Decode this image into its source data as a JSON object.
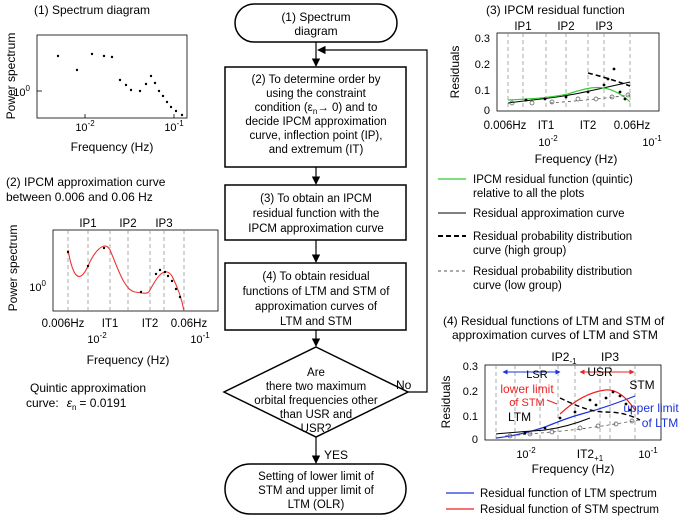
{
  "flowchart": {
    "step1": [
      "(1) Spectrum",
      "diagram"
    ],
    "step2": [
      "(2) To determine order by",
      "using the constraint",
      "condition (ε",
      "→ 0) and to",
      "decide IPCM approximation",
      "curve, inflection point (IP),",
      "and extremum (IT)"
    ],
    "step2_sub": "n",
    "step3": [
      "(3) To obtain an IPCM",
      "residual function with the",
      "IPCM approximation curve"
    ],
    "step4": [
      "(4) To obtain residual",
      "functions of LTM and STM of",
      "approximation curves of",
      "LTM and STM"
    ],
    "decision": [
      "Are",
      "there two maximum",
      "orbital frequencies other",
      "than USR and",
      "USR?"
    ],
    "yes": "YES",
    "no": "No",
    "final": [
      "Setting of lower limit of",
      "STM and upper limit of",
      "LTM (OLR)"
    ]
  },
  "panel1": {
    "title": "(1) Spectrum diagram",
    "ylabel": "Power spectrum",
    "xlabel": "Frequency (Hz)",
    "ytick": "10",
    "ytick_sup": "0",
    "xticks": [
      {
        "base": "10",
        "sup": "-2"
      },
      {
        "base": "10",
        "sup": "-1"
      }
    ]
  },
  "panel2": {
    "title": [
      "(2) IPCM approximation curve",
      "between 0.006 and 0.06 Hz"
    ],
    "ylabel": "Power spectrum",
    "xlabel": "Frequency (Hz)",
    "ytick": "10",
    "ytick_sup": "0",
    "top_labels": [
      "IP1",
      "IP2",
      "IP3"
    ],
    "bottom_labels": [
      "0.006Hz",
      "IT1",
      "IT2",
      "0.06Hz"
    ],
    "xticks": [
      {
        "base": "10",
        "sup": "-2"
      },
      {
        "base": "10",
        "sup": "-1"
      }
    ],
    "note_line1": "Quintic approximation",
    "note_line2_prefix": "curve:",
    "note_eps": "ε",
    "note_sub": "n",
    "note_value": "= 0.0191"
  },
  "panel3": {
    "title": "(3) IPCM  residual function",
    "ylabel": "Residuals",
    "xlabel": "Frequency (Hz)",
    "yticks": [
      "0.3",
      "0.2",
      "0.1",
      "0"
    ],
    "top_labels": [
      "IP1",
      "IP2",
      "IP3"
    ],
    "bottom_labels": [
      "0.006Hz",
      "IT1",
      "IT2",
      "0.06Hz"
    ],
    "xticks": [
      {
        "base": "10",
        "sup": "-2"
      },
      {
        "base": "10",
        "sup": "-1"
      }
    ]
  },
  "legend3": [
    {
      "lines": [
        "IPCM residual function (quintic)",
        "relative to all the plots"
      ],
      "color": "#33cc33",
      "style": "solid"
    },
    {
      "lines": [
        "Residual approximation curve"
      ],
      "color": "#000000",
      "style": "solid"
    },
    {
      "lines": [
        "Residual probability distribution",
        "curve (high group)"
      ],
      "color": "#000000",
      "style": "bold-dash"
    },
    {
      "lines": [
        "Residual probability distribution",
        "curve (low group)"
      ],
      "color": "#555555",
      "style": "thin-dash"
    }
  ],
  "panel4": {
    "title": [
      "(4) Residual functions of LTM and STM of",
      "approximation curves of LTM and STM"
    ],
    "ylabel": "Residuals",
    "xlabel": "Frequency (Hz)",
    "yticks": [
      "0.3",
      "0.2",
      "0.1",
      "0"
    ],
    "xticks": [
      {
        "base": "10",
        "sup": "-2"
      },
      {
        "base": "10",
        "sup": "-1"
      }
    ],
    "it2": "IT2",
    "it2_sub": "+1",
    "ip2": "IP2",
    "ip2_sub": "-1",
    "ip3": "IP3",
    "lsr": "LSR",
    "usr": "USR",
    "stm": "STM",
    "ltm": "LTM",
    "lower_limit": [
      "lower limit",
      "of STM"
    ],
    "upper_limit": [
      "upper limit",
      "of LTM"
    ]
  },
  "legend4": [
    {
      "label": "Residual function of LTM spectrum",
      "color": "#1a33dd"
    },
    {
      "label": "Residual function of STM spectrum",
      "color": "#ee2222"
    }
  ]
}
